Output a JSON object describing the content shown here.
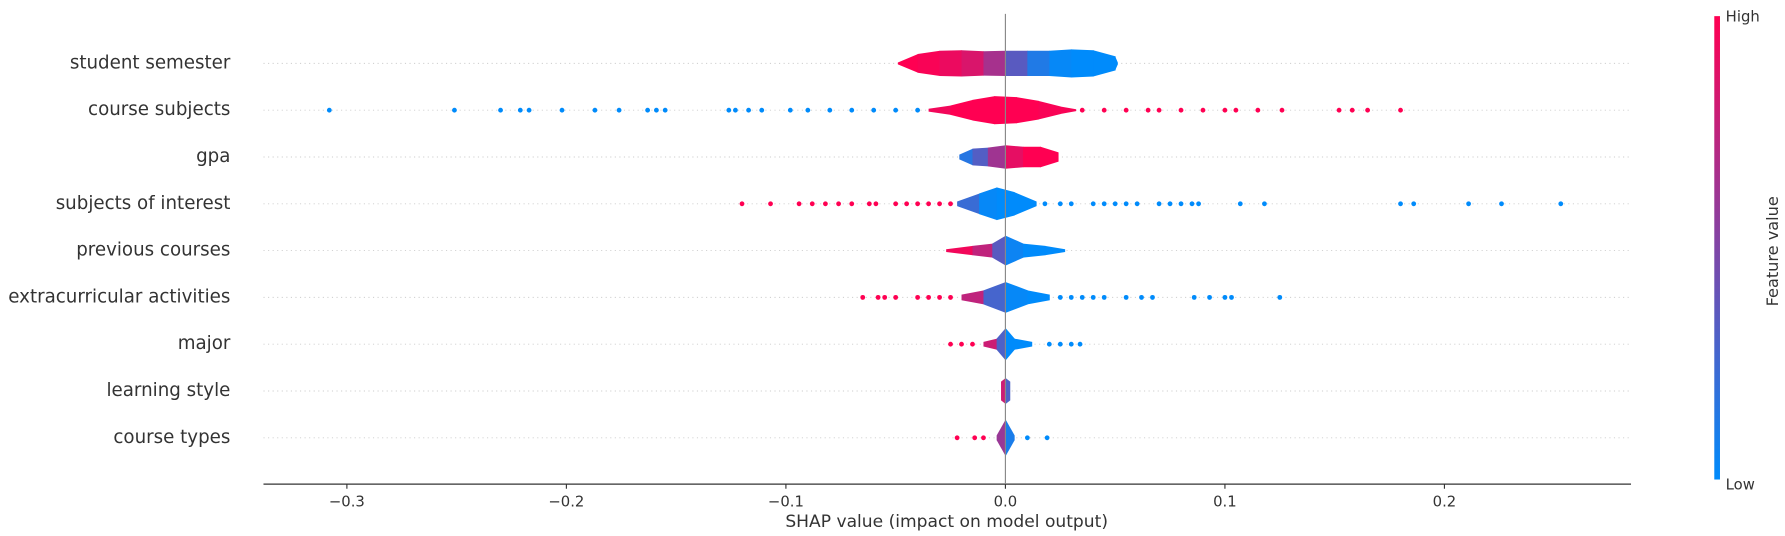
{
  "chart_data": {
    "type": "violin",
    "xlabel": "SHAP value (impact on model output)",
    "xlim": [
      -0.338,
      0.285
    ],
    "xticks": [
      {
        "value": -0.3,
        "label": "−0.3"
      },
      {
        "value": -0.2,
        "label": "−0.2"
      },
      {
        "value": -0.1,
        "label": "−0.1"
      },
      {
        "value": 0,
        "label": "0.0"
      },
      0.1,
      0.2
    ],
    "colormap": [
      "#008bfb",
      "#ff0052"
    ],
    "colorbar": {
      "label": "Feature value",
      "high": "High",
      "low": "Low"
    },
    "rows": [
      {
        "name": "student semester",
        "violin": {
          "x": [
            -0.049,
            -0.04,
            -0.03,
            -0.02,
            -0.01,
            0,
            0.01,
            0.02,
            0.03,
            0.04,
            0.05,
            0.051
          ],
          "w": [
            0.02,
            0.2,
            0.27,
            0.28,
            0.26,
            0.27,
            0.27,
            0.27,
            0.3,
            0.28,
            0.15,
            0.02
          ],
          "c": [
            1,
            1,
            0.95,
            0.9,
            0.8,
            0.5,
            0.2,
            0.05,
            0,
            0,
            0,
            0
          ]
        },
        "dots": {
          "x": [],
          "c": []
        }
      },
      {
        "name": "course subjects",
        "violin": {
          "x": [
            -0.035,
            -0.025,
            -0.015,
            -0.005,
            0.005,
            0.015,
            0.025,
            0.032
          ],
          "w": [
            0.03,
            0.1,
            0.22,
            0.3,
            0.28,
            0.2,
            0.08,
            0.02
          ],
          "c": [
            0.9,
            1,
            1,
            1,
            1,
            1,
            0.95,
            1
          ]
        },
        "dots": {
          "x": [
            -0.308,
            -0.251,
            -0.23,
            -0.221,
            -0.217,
            -0.202,
            -0.187,
            -0.176,
            -0.163,
            -0.159,
            -0.155,
            -0.126,
            -0.123,
            -0.117,
            -0.111,
            -0.098,
            -0.09,
            -0.08,
            -0.07,
            -0.06,
            -0.05,
            -0.04,
            0.035,
            0.045,
            0.055,
            0.065,
            0.07,
            0.08,
            0.09,
            0.1,
            0.105,
            0.115,
            0.126,
            0.152,
            0.158,
            0.165,
            0.18
          ],
          "c": [
            0,
            0,
            0,
            0,
            0,
            0,
            0,
            0,
            0,
            0,
            0,
            0,
            0,
            0,
            0,
            0,
            0,
            0,
            0,
            0,
            0,
            0,
            1,
            1,
            1,
            1,
            1,
            1,
            1,
            1,
            1,
            1,
            1,
            1,
            1,
            1,
            1
          ]
        }
      },
      {
        "name": "gpa",
        "violin": {
          "x": [
            -0.021,
            -0.015,
            -0.008,
            0,
            0.008,
            0.016,
            0.024
          ],
          "w": [
            0.05,
            0.18,
            0.2,
            0.25,
            0.22,
            0.22,
            0.1
          ],
          "c": [
            0.1,
            0.2,
            0.45,
            0.8,
            1,
            1,
            1
          ]
        },
        "dots": {
          "x": [],
          "c": []
        }
      },
      {
        "name": "subjects of interest",
        "violin": {
          "x": [
            -0.022,
            -0.012,
            -0.004,
            0.004,
            0.014
          ],
          "w": [
            0.05,
            0.22,
            0.35,
            0.25,
            0.05
          ],
          "c": [
            0.4,
            0.05,
            0,
            0,
            0
          ]
        },
        "dots": {
          "x": [
            -0.12,
            -0.107,
            -0.094,
            -0.088,
            -0.082,
            -0.076,
            -0.07,
            -0.062,
            -0.059,
            -0.05,
            -0.045,
            -0.04,
            -0.035,
            -0.03,
            -0.025,
            0.018,
            0.025,
            0.03,
            0.04,
            0.045,
            0.05,
            0.055,
            0.06,
            0.07,
            0.075,
            0.08,
            0.085,
            0.088,
            0.107,
            0.118,
            0.18,
            0.186,
            0.211,
            0.226,
            0.253
          ],
          "c": [
            1,
            1,
            1,
            1,
            1,
            1,
            1,
            1,
            1,
            1,
            1,
            1,
            1,
            1,
            1,
            0,
            0,
            0,
            0,
            0,
            0,
            0,
            0,
            0,
            0,
            0,
            0,
            0,
            0,
            0,
            0,
            0,
            0,
            0,
            0
          ]
        }
      },
      {
        "name": "previous courses",
        "violin": {
          "x": [
            -0.027,
            -0.015,
            -0.006,
            0,
            0.008,
            0.018,
            0.027
          ],
          "w": [
            0.03,
            0.1,
            0.15,
            0.32,
            0.15,
            0.1,
            0.03
          ],
          "c": [
            1,
            0.9,
            0.6,
            0.1,
            0,
            0,
            0
          ]
        },
        "dots": {
          "x": [],
          "c": []
        }
      },
      {
        "name": "extracurricular activities",
        "violin": {
          "x": [
            -0.02,
            -0.01,
            0,
            0.01,
            0.02
          ],
          "w": [
            0.06,
            0.15,
            0.33,
            0.15,
            0.06
          ],
          "c": [
            1,
            0.5,
            0.05,
            0,
            0
          ]
        },
        "dots": {
          "x": [
            -0.065,
            -0.058,
            -0.055,
            -0.05,
            -0.04,
            -0.035,
            -0.03,
            -0.025,
            0.025,
            0.03,
            0.035,
            0.04,
            0.045,
            0.055,
            0.062,
            0.067,
            0.086,
            0.093,
            0.1,
            0.103,
            0.125
          ],
          "c": [
            1,
            1,
            1,
            1,
            1,
            1,
            1,
            1,
            0,
            0,
            0,
            0,
            0,
            0,
            0,
            0,
            0,
            0,
            0,
            0,
            0
          ]
        }
      },
      {
        "name": "major",
        "violin": {
          "x": [
            -0.01,
            -0.004,
            0,
            0.004,
            0.012
          ],
          "w": [
            0.05,
            0.12,
            0.35,
            0.12,
            0.05
          ],
          "c": [
            1,
            0.6,
            0,
            0,
            0
          ]
        },
        "dots": {
          "x": [
            -0.025,
            -0.02,
            -0.015,
            0.02,
            0.025,
            0.03,
            0.034
          ],
          "c": [
            1,
            1,
            1,
            0,
            0,
            0,
            0
          ]
        }
      },
      {
        "name": "learning style",
        "violin": {
          "x": [
            -0.002,
            0,
            0.002
          ],
          "w": [
            0.2,
            0.28,
            0.2
          ],
          "c": [
            1,
            0.6,
            0
          ]
        },
        "dots": {
          "x": [],
          "c": []
        }
      },
      {
        "name": "course types",
        "violin": {
          "x": [
            -0.004,
            0,
            0.004
          ],
          "w": [
            0.05,
            0.4,
            0.05
          ],
          "c": [
            1,
            0.2,
            0
          ]
        },
        "dots": {
          "x": [
            -0.022,
            -0.014,
            -0.01,
            0.01,
            0.019
          ],
          "c": [
            1,
            1,
            1,
            0,
            0
          ]
        }
      }
    ]
  }
}
